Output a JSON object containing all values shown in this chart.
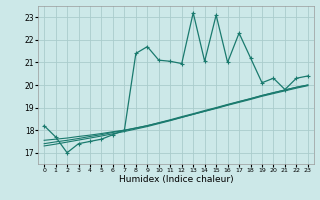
{
  "xlabel": "Humidex (Indice chaleur)",
  "background_color": "#cce8e8",
  "grid_color": "#aacccc",
  "line_color": "#1a7a6e",
  "xlim": [
    -0.5,
    23.5
  ],
  "ylim": [
    16.5,
    23.5
  ],
  "yticks": [
    17,
    18,
    19,
    20,
    21,
    22,
    23
  ],
  "xticks": [
    0,
    1,
    2,
    3,
    4,
    5,
    6,
    7,
    8,
    9,
    10,
    11,
    12,
    13,
    14,
    15,
    16,
    17,
    18,
    19,
    20,
    21,
    22,
    23
  ],
  "series1_x": [
    0,
    1,
    2,
    3,
    4,
    5,
    6,
    7,
    8,
    9,
    10,
    11,
    12,
    13,
    14,
    15,
    16,
    17,
    18,
    19,
    20,
    21,
    22,
    23
  ],
  "series1_y": [
    18.2,
    17.7,
    17.0,
    17.4,
    17.5,
    17.6,
    17.8,
    18.0,
    21.4,
    21.7,
    21.1,
    21.05,
    20.95,
    23.2,
    21.05,
    23.1,
    21.0,
    22.3,
    21.2,
    20.1,
    20.3,
    19.8,
    20.3,
    20.4
  ],
  "series2_y": [
    17.55,
    17.6,
    17.65,
    17.72,
    17.78,
    17.85,
    17.93,
    18.0,
    18.1,
    18.2,
    18.32,
    18.44,
    18.57,
    18.7,
    18.83,
    18.96,
    19.1,
    19.23,
    19.36,
    19.5,
    19.62,
    19.74,
    19.86,
    19.97
  ],
  "series3_y": [
    17.4,
    17.48,
    17.55,
    17.63,
    17.72,
    17.8,
    17.9,
    17.99,
    18.09,
    18.2,
    18.33,
    18.46,
    18.6,
    18.73,
    18.87,
    19.0,
    19.14,
    19.27,
    19.4,
    19.54,
    19.66,
    19.78,
    19.9,
    20.0
  ],
  "series4_y": [
    17.3,
    17.38,
    17.47,
    17.56,
    17.65,
    17.74,
    17.84,
    17.94,
    18.05,
    18.16,
    18.29,
    18.42,
    18.56,
    18.7,
    18.84,
    18.98,
    19.12,
    19.26,
    19.39,
    19.53,
    19.66,
    19.78,
    19.9,
    20.0
  ]
}
